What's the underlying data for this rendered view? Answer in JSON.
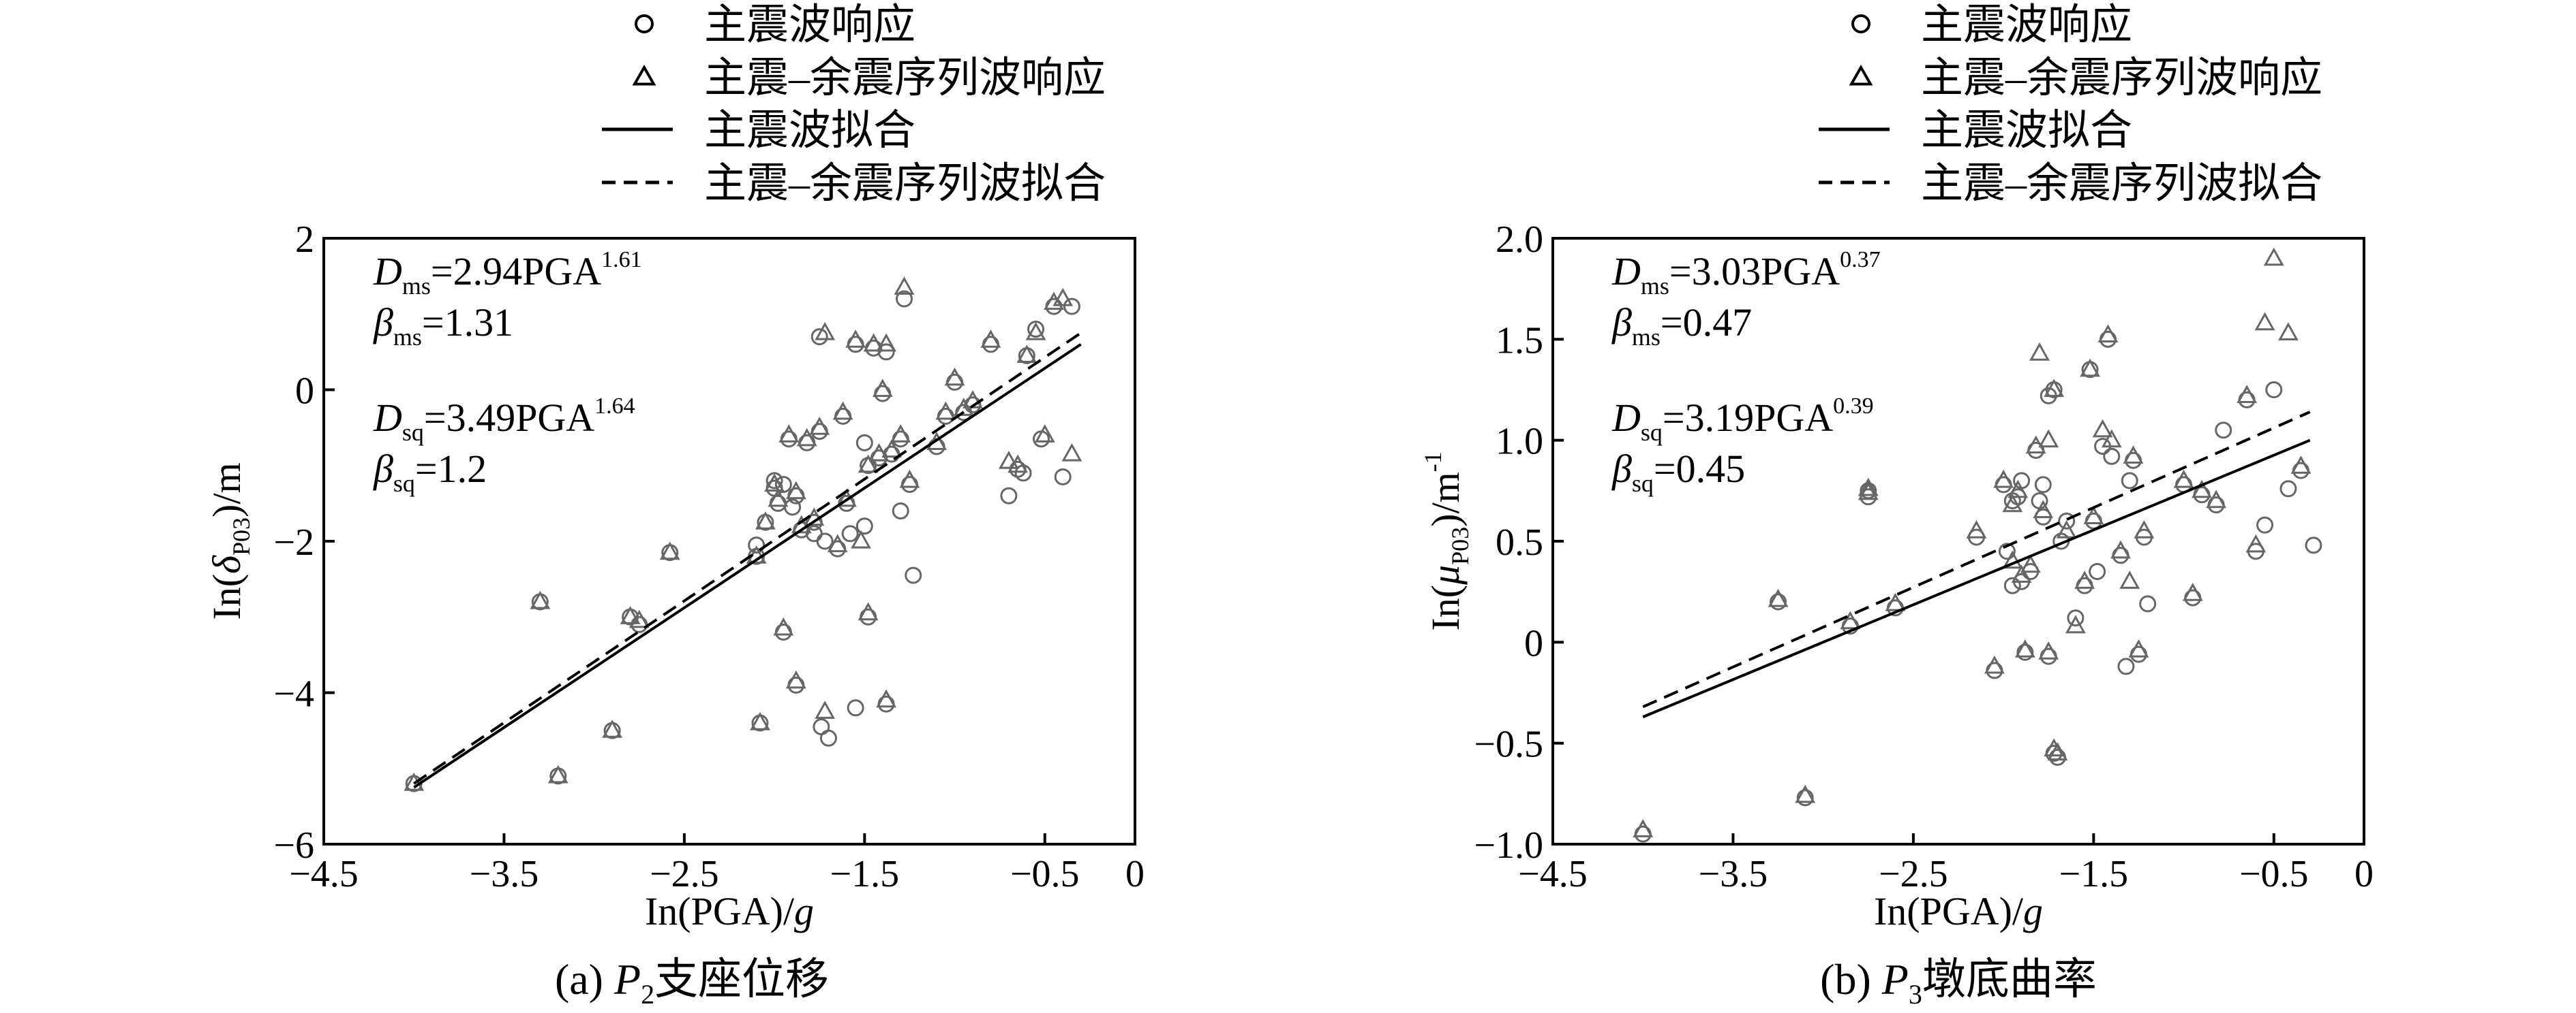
{
  "legend": {
    "items": [
      {
        "label": "主震波响应",
        "marker": "circle"
      },
      {
        "label": "主震–余震序列波响应",
        "marker": "triangle"
      },
      {
        "label": "主震波拟合",
        "line": "solid"
      },
      {
        "label": "主震–余震序列波拟合",
        "line": "dashed"
      }
    ]
  },
  "chart_data": [
    {
      "type": "scatter",
      "caption": "(a) P2支座位移",
      "xlabel": "In(PGA)/g",
      "ylabel": "In(δP03)/m",
      "xlim": [
        -4.5,
        0
      ],
      "ylim": [
        -6,
        2
      ],
      "xticks": [
        "−4.5",
        "−3.5",
        "−2.5",
        "−1.5",
        "−0.5",
        "0"
      ],
      "yticks": [
        "2",
        "0",
        "−2",
        "−4",
        "−6"
      ],
      "annotations": [
        "Dms=2.94PGA1.61",
        "βms=1.31",
        "Dsq=3.49PGA1.64",
        "βsq=1.2"
      ],
      "series": [
        {
          "name": "主震波响应",
          "marker": "circle",
          "x": [
            -4.0,
            -3.2,
            -3.3,
            -2.9,
            -2.8,
            -2.75,
            -2.58,
            -2.1,
            -2.08,
            -2.05,
            -2.0,
            -2.0,
            -1.98,
            -1.92,
            -1.88,
            -1.95,
            -1.85,
            -1.82,
            -1.78,
            -1.75,
            -1.74,
            -1.7,
            -1.65,
            -1.6,
            -1.62,
            -1.55,
            -1.45,
            -1.5,
            -1.48,
            -1.42,
            -1.4,
            -1.38,
            -1.35,
            -1.3,
            -1.28,
            -1.25,
            -1.23,
            -1.3,
            -1.1,
            -1.05,
            -1.0,
            -0.95,
            -0.9,
            -0.8,
            -0.7,
            -0.62,
            -0.6,
            -0.55,
            -0.52,
            -0.45,
            -0.65,
            -0.4,
            -0.35,
            -1.88,
            -1.95,
            -1.5,
            -1.38,
            -1.48,
            -1.55,
            -1.75,
            -1.9,
            -1.78,
            -1.72,
            -2.1,
            -1.58
          ],
          "y": [
            -5.2,
            -5.1,
            -2.8,
            -4.5,
            -3.0,
            -3.1,
            -2.15,
            -2.2,
            -4.4,
            -1.75,
            -1.3,
            -1.2,
            -1.5,
            -0.65,
            -1.4,
            -1.25,
            -1.85,
            -0.7,
            -1.75,
            -0.55,
            -4.45,
            -4.6,
            -2.1,
            -1.5,
            -0.35,
            0.6,
            0.55,
            -0.7,
            -1.0,
            -0.9,
            -0.05,
            0.5,
            -0.85,
            -0.65,
            1.2,
            -1.25,
            -2.45,
            -1.6,
            -0.75,
            -0.35,
            0.1,
            -0.3,
            -0.2,
            0.6,
            -1.4,
            -1.1,
            0.45,
            0.8,
            -0.65,
            1.1,
            -1.05,
            -1.15,
            1.1,
            -3.9,
            -3.2,
            -1.8,
            -4.15,
            -3.0,
            -4.2,
            0.7,
            -1.55,
            -1.9,
            -2.0,
            -2.05,
            -1.9
          ]
        },
        {
          "name": "主震–余震序列波响应",
          "marker": "triangle",
          "x": [
            -4.0,
            -3.2,
            -3.3,
            -2.9,
            -2.8,
            -2.75,
            -2.58,
            -2.1,
            -2.08,
            -2.05,
            -2.0,
            -1.98,
            -1.92,
            -1.88,
            -1.85,
            -1.82,
            -1.78,
            -1.75,
            -1.72,
            -1.65,
            -1.6,
            -1.62,
            -1.55,
            -1.45,
            -1.48,
            -1.42,
            -1.4,
            -1.38,
            -1.35,
            -1.3,
            -1.28,
            -1.25,
            -1.1,
            -1.05,
            -1.0,
            -0.95,
            -0.9,
            -0.8,
            -0.7,
            -0.6,
            -0.55,
            -0.5,
            -0.45,
            -0.65,
            -0.4,
            -0.35,
            -1.88,
            -1.95,
            -1.52,
            -1.38,
            -1.48,
            -1.72
          ],
          "y": [
            -5.2,
            -5.1,
            -2.8,
            -4.5,
            -3.0,
            -3.05,
            -2.15,
            -2.2,
            -4.4,
            -1.75,
            -1.25,
            -1.45,
            -0.6,
            -1.35,
            -1.8,
            -0.65,
            -1.7,
            -0.5,
            -4.25,
            -2.05,
            -1.45,
            -0.3,
            0.65,
            0.6,
            -1.0,
            -0.85,
            0.0,
            0.6,
            -0.8,
            -0.6,
            1.35,
            -1.2,
            -0.7,
            -0.3,
            0.15,
            -0.25,
            -0.15,
            0.65,
            -0.95,
            0.45,
            0.75,
            -0.6,
            1.15,
            -1.0,
            1.2,
            -0.85,
            -3.85,
            -3.15,
            -2.0,
            -4.1,
            -2.95,
            0.75
          ]
        },
        {
          "name": "主震波拟合",
          "line": "solid",
          "x": [
            -4.0,
            -0.3
          ],
          "y": [
            -5.25,
            0.6
          ]
        },
        {
          "name": "主震–余震序列波拟合",
          "line": "dashed",
          "x": [
            -4.0,
            -0.3
          ],
          "y": [
            -5.2,
            0.75
          ]
        }
      ]
    },
    {
      "type": "scatter",
      "caption": "(b) P3墩底曲率",
      "xlabel": "In(PGA)/g",
      "ylabel": "In(μP03)/m-1",
      "xlim": [
        -4.5,
        0
      ],
      "ylim": [
        -1.0,
        2.0
      ],
      "xticks": [
        "−4.5",
        "−3.5",
        "−2.5",
        "−1.5",
        "−0.5",
        "0"
      ],
      "yticks": [
        "2.0",
        "1.5",
        "1.0",
        "0.5",
        "0",
        "−0.5",
        "−1.0"
      ],
      "annotations": [
        "Dms=3.03PGA0.37",
        "βms=0.47",
        "Dsq=3.19PGA0.39",
        "βsq=0.45"
      ],
      "series": [
        {
          "name": "主震波响应",
          "marker": "circle",
          "x": [
            -4.0,
            -3.25,
            -3.1,
            -2.85,
            -2.75,
            -2.6,
            -2.75,
            -2.15,
            -2.05,
            -2.0,
            -1.98,
            -1.95,
            -1.92,
            -1.9,
            -1.88,
            -1.85,
            -1.82,
            -1.8,
            -1.78,
            -1.75,
            -1.72,
            -1.7,
            -1.68,
            -1.65,
            -1.6,
            -1.55,
            -1.52,
            -1.5,
            -1.48,
            -1.45,
            -1.42,
            -1.4,
            -1.35,
            -1.32,
            -1.3,
            -1.28,
            -1.25,
            -1.22,
            -1.2,
            -1.0,
            -0.95,
            -0.9,
            -0.82,
            -0.78,
            -0.65,
            -0.6,
            -0.55,
            -0.5,
            -0.42,
            -0.35,
            -0.28,
            -1.75,
            -1.72,
            -1.9,
            -1.95,
            -1.78
          ],
          "y": [
            -0.95,
            0.2,
            -0.77,
            0.08,
            0.75,
            0.17,
            0.72,
            0.52,
            -0.14,
            0.78,
            0.45,
            0.28,
            0.72,
            0.3,
            -0.05,
            0.35,
            0.95,
            0.7,
            0.62,
            -0.07,
            1.25,
            -0.57,
            0.5,
            0.6,
            0.12,
            0.28,
            1.35,
            0.6,
            0.35,
            0.97,
            1.5,
            0.92,
            0.43,
            -0.12,
            0.8,
            0.9,
            -0.06,
            0.52,
            0.19,
            0.78,
            0.22,
            0.73,
            0.68,
            1.05,
            1.2,
            0.45,
            0.58,
            1.25,
            0.76,
            0.85,
            0.48,
            1.22,
            -0.55,
            0.8,
            0.7,
            0.78
          ]
        },
        {
          "name": "主震–余震序列波响应",
          "marker": "triangle",
          "x": [
            -4.0,
            -3.25,
            -3.1,
            -2.85,
            -2.75,
            -2.6,
            -2.75,
            -2.15,
            -2.05,
            -2.0,
            -1.95,
            -1.92,
            -1.9,
            -1.88,
            -1.85,
            -1.82,
            -1.8,
            -1.78,
            -1.75,
            -1.72,
            -1.7,
            -1.65,
            -1.6,
            -1.55,
            -1.52,
            -1.5,
            -1.45,
            -1.42,
            -1.4,
            -1.35,
            -1.3,
            -1.28,
            -1.25,
            -1.22,
            -1.0,
            -0.95,
            -0.9,
            -0.82,
            -0.65,
            -0.6,
            -0.55,
            -0.5,
            -0.42,
            -0.35,
            -1.75,
            -1.72,
            -1.95
          ],
          "y": [
            -0.93,
            0.21,
            -0.76,
            0.1,
            0.76,
            0.19,
            0.74,
            0.55,
            -0.12,
            0.8,
            0.4,
            0.75,
            0.33,
            -0.04,
            0.38,
            0.97,
            1.43,
            0.65,
            -0.05,
            1.25,
            -0.55,
            0.55,
            0.08,
            0.3,
            1.35,
            0.62,
            1.05,
            1.52,
            1.0,
            0.45,
            0.3,
            0.92,
            -0.04,
            0.55,
            0.8,
            0.24,
            0.75,
            0.7,
            1.22,
            0.48,
            1.58,
            1.9,
            1.53,
            0.87,
            1.0,
            -0.53,
            0.68
          ]
        },
        {
          "name": "主震波拟合",
          "line": "solid",
          "x": [
            -4.0,
            -0.3
          ],
          "y": [
            -0.37,
            1.0
          ]
        },
        {
          "name": "主震–余震序列波拟合",
          "line": "dashed",
          "x": [
            -4.0,
            -0.3
          ],
          "y": [
            -0.32,
            1.14
          ]
        }
      ]
    }
  ]
}
